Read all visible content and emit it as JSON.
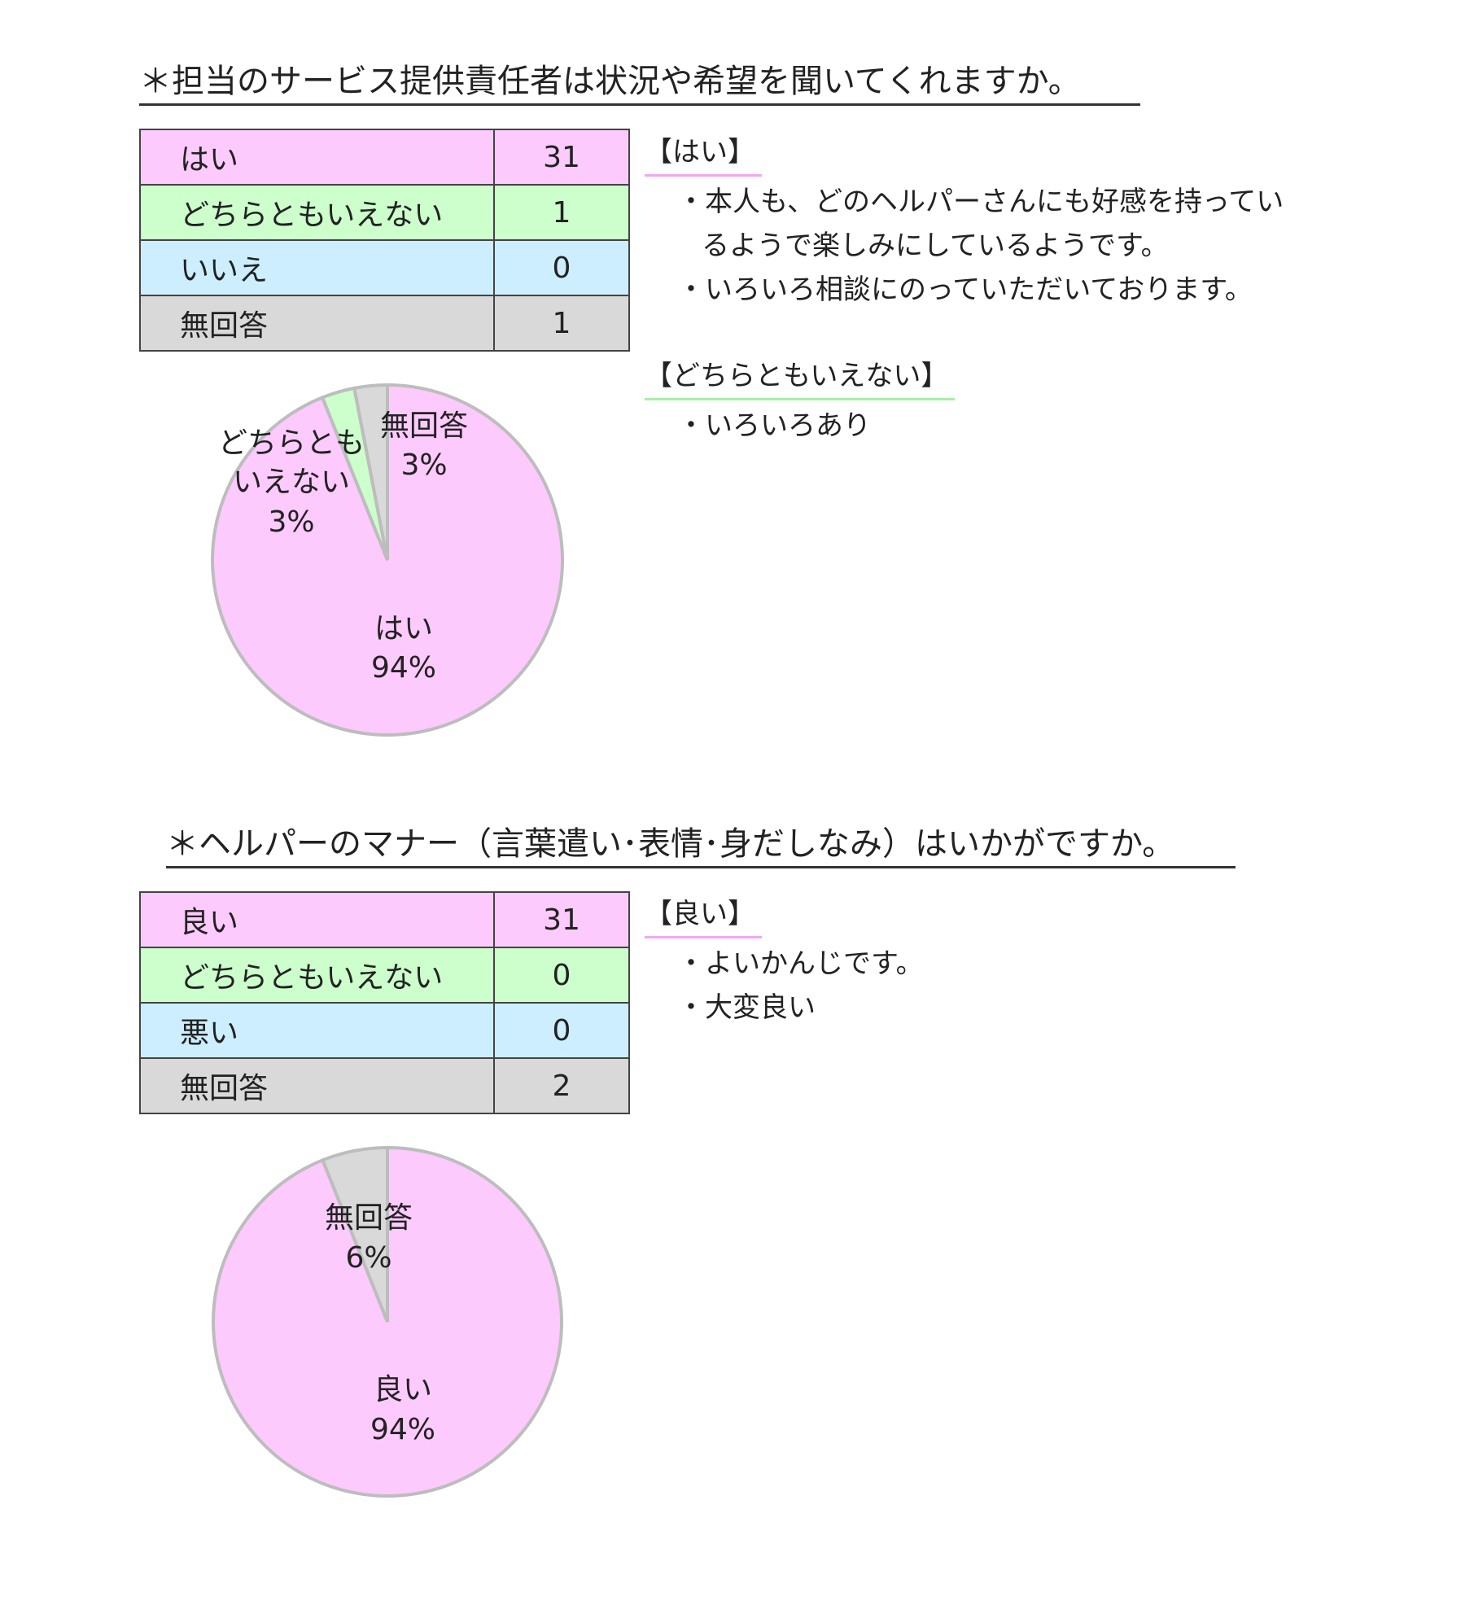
{
  "colors": {
    "pink": "#fccafc",
    "green": "#ccffcc",
    "blue": "#cceeff",
    "grey": "#d9d9d9",
    "outline": "#bdbdbd"
  },
  "q1": {
    "title": "＊担当のサービス提供責任者は状況や希望を聞いてくれますか。",
    "rows": [
      {
        "label": "はい",
        "value": "31"
      },
      {
        "label": "どちらともいえない",
        "value": "1"
      },
      {
        "label": "いいえ",
        "value": "0"
      },
      {
        "label": "無回答",
        "value": "1"
      }
    ],
    "comments": [
      {
        "heading": "【はい】",
        "items": [
          "・本人も、どのヘルパーさんにも好感を持ってい",
          "るようで楽しみにしているようです。",
          "・いろいろ相談にのっていただいております。"
        ]
      },
      {
        "heading": "【どちらともいえない】",
        "items": [
          "・いろいろあり"
        ]
      }
    ],
    "pie_labels": [
      {
        "lines": [
          "無回答",
          "3%"
        ]
      },
      {
        "lines": [
          "どちらとも",
          "いえない",
          "3%"
        ]
      },
      {
        "lines": [
          "はい",
          "94%"
        ]
      }
    ]
  },
  "q2": {
    "title": "＊ヘルパーのマナー（言葉遣い･表情･身だしなみ）はいかがですか。",
    "rows": [
      {
        "label": "良い",
        "value": "31"
      },
      {
        "label": "どちらともいえない",
        "value": "0"
      },
      {
        "label": "悪い",
        "value": "0"
      },
      {
        "label": "無回答",
        "value": "2"
      }
    ],
    "comments": [
      {
        "heading": "【良い】",
        "items": [
          "・よいかんじです。",
          "・大変良い"
        ]
      }
    ],
    "pie_labels": [
      {
        "lines": [
          "無回答",
          "6%"
        ]
      },
      {
        "lines": [
          "良い",
          "94%"
        ]
      }
    ]
  },
  "chart_data": [
    {
      "type": "pie",
      "categories": [
        "はい",
        "どちらともいえない",
        "いいえ",
        "無回答"
      ],
      "values": [
        31,
        1,
        0,
        1
      ],
      "percent_labels": [
        "94%",
        "3%",
        "0%",
        "3%"
      ],
      "colors": [
        "#fccafc",
        "#ccffcc",
        "#cceeff",
        "#d9d9d9"
      ],
      "start": "12 o'clock",
      "direction": "clockwise"
    },
    {
      "type": "pie",
      "categories": [
        "良い",
        "どちらともいえない",
        "悪い",
        "無回答"
      ],
      "values": [
        31,
        0,
        0,
        2
      ],
      "percent_labels": [
        "94%",
        "0%",
        "0%",
        "6%"
      ],
      "colors": [
        "#fccafc",
        "#ccffcc",
        "#cceeff",
        "#d9d9d9"
      ],
      "start": "12 o'clock",
      "direction": "clockwise"
    }
  ]
}
